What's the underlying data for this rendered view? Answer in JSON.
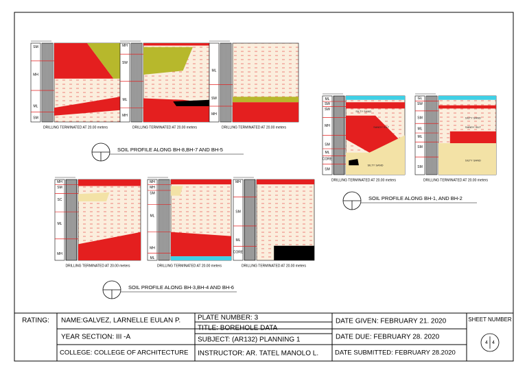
{
  "sections": [
    {
      "title": "SOIL PROFILE ALONG BH-8,BH-7 AND BH-5"
    },
    {
      "title": "SOIL PROFILE ALONG BH-1, AND BH-2"
    },
    {
      "title": "SOIL PROFILE ALONG BH-3,BH-4 AND BH-6"
    }
  ],
  "boreholes": [
    {
      "caption": "DRILLING TERMINATED AT 20.00 meters",
      "layers": [
        "SM",
        "MH",
        "ML",
        "SM"
      ],
      "notes": []
    },
    {
      "caption": "DRILLING TERMINATED AT 20.00 meters",
      "layers": [
        "MH",
        "SW",
        "ML",
        "MH"
      ],
      "notes": []
    },
    {
      "caption": "DRILLING TERMINATED AT 20.00 meters",
      "layers": [
        "ML",
        "SW",
        "MH"
      ],
      "notes": []
    },
    {
      "caption": "DRILLING TERMINATED AT 20.00 meters",
      "layers": [
        "ML",
        "SW",
        "SW",
        "MH",
        "SM",
        "ML",
        "CORE",
        "SM"
      ],
      "notes": [
        "SILTY SAND",
        "SANDY SILT",
        "SILTY SAND"
      ]
    },
    {
      "caption": "DRILLING TERMINATED AT 20.00 meters",
      "layers": [
        "GL",
        "SW",
        "SM",
        "ML",
        "ML",
        "SM",
        "SM"
      ],
      "notes": [
        "SILTY SAND",
        "SANDY SILT",
        "SILTY SAND"
      ]
    },
    {
      "caption": "DRILLING TERMINATED AT 20.00 meters",
      "layers": [
        "MH",
        "SM",
        "SC",
        "ML",
        "MH"
      ],
      "notes": []
    },
    {
      "caption": "DRILLING TERMINATED AT 20.00 meters",
      "layers": [
        "MH",
        "MH",
        "SM",
        "ML",
        "MH",
        "ML"
      ],
      "notes": []
    },
    {
      "caption": "DRILLING TERMINATED AT 20.00 meters",
      "layers": [
        "MH",
        "SM",
        "ML",
        "CORE"
      ],
      "notes": []
    }
  ],
  "title_block": {
    "rating": "RATING:",
    "name": "NAME:GALVEZ, LARNELLE EULAN P.",
    "year_section": "YEAR SECTION: III -A",
    "college": "COLLEGE: COLLEGE OF ARCHITECTURE",
    "plate_number": "PLATE NUMBER: 3",
    "title": "TITLE: BOREHOLE DATA",
    "subject": "SUBJECT: (AR132) PLANNING 1",
    "instructor": "INSTRUCTOR: AR. TATEL MANOLO L.",
    "date_given": "DATE GIVEN: FEBRUARY 21. 2020",
    "date_due": "DATE DUE: FEBRUARY 28. 2020",
    "date_submitted": "DATE SUBMITTED: FEBRUARY 28.2020",
    "sheet_number_label": "SHEET NUMBER",
    "sheet": "4",
    "total_sheets": "4"
  }
}
